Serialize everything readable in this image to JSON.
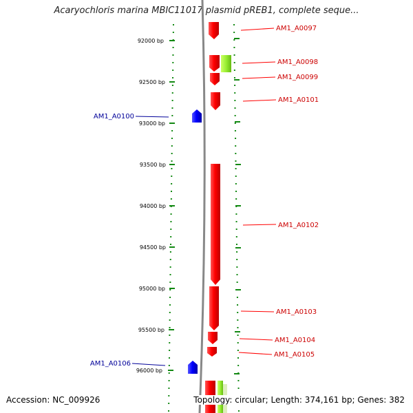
{
  "title": "Acaryochloris marina MBIC11017 plasmid pREB1, complete seque...",
  "colors": {
    "forward_gene": "#ff0000",
    "reverse_gene": "#0000ff",
    "forward_label": "#cc0000",
    "reverse_label": "#000099",
    "tick": "#118811",
    "backbone": "#888888",
    "other_feature": "#99ee33"
  },
  "axis": {
    "ticks": [
      {
        "label": "92000 bp"
      },
      {
        "label": "92500 bp"
      },
      {
        "label": "93000 bp"
      },
      {
        "label": "93500 bp"
      },
      {
        "label": "94000 bp"
      },
      {
        "label": "94500 bp"
      },
      {
        "label": "95000 bp"
      },
      {
        "label": "95500 bp"
      },
      {
        "label": "96000 bp"
      }
    ]
  },
  "genes": [
    {
      "name": "AM1_A0097",
      "strand": "+"
    },
    {
      "name": "AM1_A0098",
      "strand": "+"
    },
    {
      "name": "AM1_A0099",
      "strand": "+"
    },
    {
      "name": "AM1_A0101",
      "strand": "+"
    },
    {
      "name": "AM1_A0100",
      "strand": "-"
    },
    {
      "name": "AM1_A0102",
      "strand": "+"
    },
    {
      "name": "AM1_A0103",
      "strand": "+"
    },
    {
      "name": "AM1_A0104",
      "strand": "+"
    },
    {
      "name": "AM1_A0105",
      "strand": "+"
    },
    {
      "name": "AM1_A0106",
      "strand": "-"
    }
  ],
  "footer": {
    "accession": "Accession: NC_009926",
    "summary": "Topology: circular; Length: 374,161 bp; Genes: 382"
  }
}
